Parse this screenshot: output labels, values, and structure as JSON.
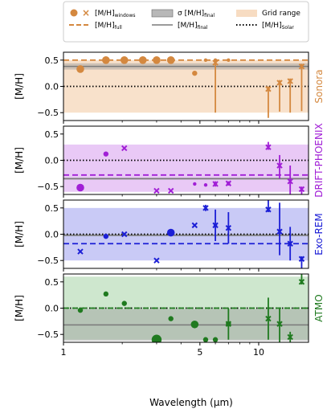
{
  "legend": {
    "windows": "[M/H]",
    "windows_sub": "windows",
    "full": "[M/H]",
    "full_sub": "full",
    "sigma": "σ [M/H]",
    "sigma_sub": "final",
    "final": "[M/H]",
    "final_sub": "final",
    "grid_range": "Grid range",
    "solar": "[M/H]",
    "solar_sub": "Solar"
  },
  "colors": {
    "Sonora": "#d4883f",
    "Sonora_fill": "#f7dcc2",
    "DRIFT-PHOENIX": "#a11fd6",
    "DRIFT-PHOENIX_fill": "#e5c0f5",
    "Exo-REM": "#1c1fd6",
    "Exo-REM_fill": "#bfc1f5",
    "ATMO": "#1f7a1f",
    "ATMO_fill": "#c6e3c6",
    "sigma_band": "#9a9a9a",
    "final_line": "#7a7a7a",
    "solar_line": "#000000"
  },
  "chart_data": {
    "type": "scatter",
    "xlabel": "Wavelength (μm)",
    "xscale": "log",
    "xlim": [
      1.0,
      18.0
    ],
    "xticks": [
      1,
      5,
      10
    ],
    "x_tick_labels": [
      "1",
      "5",
      "10"
    ],
    "ylabel": "[M/H]",
    "ylim": [
      -0.65,
      0.65
    ],
    "yticks": [
      -0.5,
      0.0,
      0.5
    ],
    "y_tick_labels": [
      "−0.5",
      "0.0",
      "0.5"
    ],
    "solar_value": 0.0,
    "legend_position": "top",
    "panels": [
      {
        "model": "Sonora",
        "grid_range": [
          -0.5,
          0.5
        ],
        "mh_final": 0.38,
        "mh_final_sigma": 0.06,
        "mh_full": 0.5,
        "circles": [
          {
            "x": 1.22,
            "y": 0.33,
            "size": "medium"
          },
          {
            "x": 1.65,
            "y": 0.5,
            "size": "medium"
          },
          {
            "x": 2.05,
            "y": 0.5,
            "size": "medium"
          },
          {
            "x": 2.55,
            "y": 0.5,
            "size": "medium"
          },
          {
            "x": 3.0,
            "y": 0.5,
            "size": "medium"
          },
          {
            "x": 3.55,
            "y": 0.5,
            "size": "medium"
          },
          {
            "x": 4.7,
            "y": 0.25,
            "size": "small"
          },
          {
            "x": 5.35,
            "y": 0.5,
            "size": "tiny"
          },
          {
            "x": 6.0,
            "y": 0.5,
            "size": "tiny"
          },
          {
            "x": 7.0,
            "y": 0.5,
            "size": "tiny"
          }
        ],
        "crosses": [
          {
            "x": 6.0,
            "y": 0.45,
            "err": [
              0.05,
              0.95
            ]
          },
          {
            "x": 11.2,
            "y": -0.05,
            "err": [
              0.05,
              0.55
            ]
          },
          {
            "x": 12.8,
            "y": 0.07,
            "err": [
              0.05,
              0.55
            ]
          },
          {
            "x": 14.5,
            "y": 0.1,
            "err": [
              0.05,
              0.6
            ]
          },
          {
            "x": 16.6,
            "y": 0.38,
            "err": [
              0.05,
              0.85
            ]
          }
        ]
      },
      {
        "model": "DRIFT-PHOENIX",
        "grid_range": [
          -0.6,
          0.3
        ],
        "mh_final": -0.35,
        "mh_final_sigma": 0.02,
        "mh_full": -0.28,
        "circles": [
          {
            "x": 1.22,
            "y": -0.52,
            "size": "medium"
          },
          {
            "x": 1.65,
            "y": 0.12,
            "size": "small"
          },
          {
            "x": 4.7,
            "y": -0.45,
            "size": "tiny"
          },
          {
            "x": 5.35,
            "y": -0.47,
            "size": "tiny"
          },
          {
            "x": 6.0,
            "y": -0.45,
            "size": "tiny"
          },
          {
            "x": 7.0,
            "y": -0.44,
            "size": "tiny"
          }
        ],
        "crosses": [
          {
            "x": 2.05,
            "y": 0.23,
            "err": [
              0.0,
              0.0
            ]
          },
          {
            "x": 3.0,
            "y": -0.58,
            "err": [
              0.0,
              0.0
            ]
          },
          {
            "x": 3.55,
            "y": -0.58,
            "err": [
              0.0,
              0.0
            ]
          },
          {
            "x": 6.0,
            "y": -0.45,
            "err": [
              0.05,
              0.05
            ]
          },
          {
            "x": 7.0,
            "y": -0.44,
            "err": [
              0.04,
              0.04
            ]
          },
          {
            "x": 11.2,
            "y": 0.25,
            "err": [
              0.1,
              0.05
            ]
          },
          {
            "x": 12.8,
            "y": -0.1,
            "err": [
              0.2,
              0.25
            ]
          },
          {
            "x": 14.5,
            "y": -0.4,
            "err": [
              0.3,
              0.7
            ]
          },
          {
            "x": 16.6,
            "y": -0.55,
            "err": [
              0.05,
              0.85
            ]
          }
        ]
      },
      {
        "model": "Exo-REM",
        "grid_range": [
          -0.5,
          0.5
        ],
        "mh_final": -0.02,
        "mh_final_sigma": 0.02,
        "mh_full": -0.18,
        "circles": [
          {
            "x": 1.65,
            "y": -0.04,
            "size": "small"
          },
          {
            "x": 3.55,
            "y": 0.03,
            "size": "medium"
          },
          {
            "x": 6.0,
            "y": 0.17,
            "size": "tiny"
          }
        ],
        "crosses": [
          {
            "x": 1.22,
            "y": -0.33,
            "err": [
              0.0,
              0.0
            ]
          },
          {
            "x": 2.05,
            "y": 0.0,
            "err": [
              0.0,
              0.0
            ]
          },
          {
            "x": 3.0,
            "y": -0.5,
            "err": [
              0.0,
              0.0
            ]
          },
          {
            "x": 4.7,
            "y": 0.17,
            "err": [
              0.0,
              0.0
            ]
          },
          {
            "x": 5.35,
            "y": 0.5,
            "err": [
              0.06,
              0.06
            ]
          },
          {
            "x": 6.0,
            "y": 0.17,
            "err": [
              0.3,
              0.3
            ]
          },
          {
            "x": 7.0,
            "y": 0.12,
            "err": [
              0.3,
              0.3
            ]
          },
          {
            "x": 11.2,
            "y": 0.47,
            "err": [
              0.6,
              0.05
            ]
          },
          {
            "x": 12.8,
            "y": 0.05,
            "err": [
              0.55,
              0.45
            ]
          },
          {
            "x": 14.5,
            "y": -0.18,
            "err": [
              0.32,
              0.32
            ]
          },
          {
            "x": 16.6,
            "y": -0.47,
            "err": [
              0.05,
              0.95
            ]
          }
        ]
      },
      {
        "model": "ATMO",
        "grid_range": [
          -0.6,
          0.6
        ],
        "mh_final": -0.32,
        "mh_final_sigma": 0.3,
        "mh_full": 0.0,
        "circles": [
          {
            "x": 1.22,
            "y": -0.04,
            "size": "small"
          },
          {
            "x": 1.65,
            "y": 0.27,
            "size": "small"
          },
          {
            "x": 2.05,
            "y": 0.09,
            "size": "small"
          },
          {
            "x": 3.0,
            "y": -0.6,
            "size": "large"
          },
          {
            "x": 3.55,
            "y": -0.2,
            "size": "small"
          },
          {
            "x": 4.7,
            "y": -0.31,
            "size": "medium"
          },
          {
            "x": 5.35,
            "y": -0.6,
            "size": "small"
          },
          {
            "x": 6.0,
            "y": -0.6,
            "size": "small"
          },
          {
            "x": 7.0,
            "y": -0.3,
            "size": "small"
          }
        ],
        "crosses": [
          {
            "x": 7.0,
            "y": -0.3,
            "err": [
              0.3,
              0.3
            ]
          },
          {
            "x": 11.2,
            "y": -0.2,
            "err": [
              0.4,
              0.4
            ]
          },
          {
            "x": 12.8,
            "y": -0.3,
            "err": [
              0.3,
              0.7
            ]
          },
          {
            "x": 14.5,
            "y": -0.55,
            "err": [
              0.1,
              0.5
            ]
          },
          {
            "x": 16.6,
            "y": 0.5,
            "err": [
              1.1,
              0.05
            ]
          }
        ]
      }
    ]
  }
}
